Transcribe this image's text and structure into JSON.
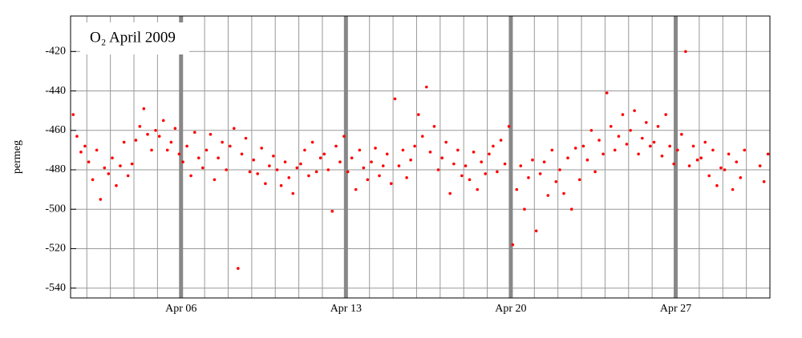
{
  "chart_data": {
    "type": "scatter",
    "title": "O₂ April 2009",
    "y_label": "permeg",
    "xlim": [
      1.31,
      31.0
    ],
    "xticks": [
      {
        "value": 6,
        "label": "Apr 06"
      },
      {
        "value": 13,
        "label": "Apr 13"
      },
      {
        "value": 20,
        "label": "Apr 20"
      },
      {
        "value": 27,
        "label": "Apr 27"
      }
    ],
    "xminorticks": [
      2,
      3,
      4,
      5,
      7,
      8,
      9,
      10,
      11,
      12,
      14,
      15,
      16,
      17,
      18,
      19,
      21,
      22,
      23,
      24,
      25,
      26,
      28,
      29,
      30
    ],
    "ylim": [
      -545,
      -402
    ],
    "yticks": [
      -540,
      -520,
      -500,
      -480,
      -460,
      -440,
      -420
    ],
    "grid": true,
    "series": [
      {
        "color": "#ff0000",
        "x": [
          1.42,
          1.58,
          1.75,
          1.92,
          2.08,
          2.25,
          2.42,
          2.58,
          2.75,
          2.92,
          3.08,
          3.25,
          3.42,
          3.58,
          3.75,
          3.92,
          4.08,
          4.25,
          4.42,
          4.58,
          4.75,
          4.92,
          5.08,
          5.25,
          5.42,
          5.58,
          5.75,
          5.92,
          6.08,
          6.25,
          6.42,
          6.58,
          6.75,
          6.92,
          7.08,
          7.25,
          7.42,
          7.58,
          7.75,
          7.92,
          8.08,
          8.25,
          8.42,
          8.58,
          8.75,
          8.92,
          9.08,
          9.25,
          9.42,
          9.58,
          9.75,
          9.92,
          10.08,
          10.25,
          10.42,
          10.58,
          10.75,
          10.92,
          11.08,
          11.25,
          11.42,
          11.58,
          11.75,
          11.92,
          12.08,
          12.25,
          12.42,
          12.58,
          12.75,
          12.92,
          13.08,
          13.25,
          13.42,
          13.58,
          13.75,
          13.92,
          14.08,
          14.25,
          14.42,
          14.58,
          14.75,
          14.92,
          15.08,
          15.25,
          15.42,
          15.58,
          15.75,
          15.92,
          16.08,
          16.25,
          16.42,
          16.58,
          16.75,
          16.92,
          17.08,
          17.25,
          17.42,
          17.58,
          17.75,
          17.92,
          18.08,
          18.25,
          18.42,
          18.58,
          18.75,
          18.92,
          19.08,
          19.25,
          19.42,
          19.58,
          19.75,
          19.92,
          20.08,
          20.25,
          20.42,
          20.58,
          20.75,
          20.92,
          21.08,
          21.25,
          21.42,
          21.58,
          21.75,
          21.92,
          22.08,
          22.25,
          22.42,
          22.58,
          22.75,
          22.92,
          23.08,
          23.25,
          23.42,
          23.58,
          23.75,
          23.92,
          24.08,
          24.25,
          24.42,
          24.58,
          24.75,
          24.92,
          25.08,
          25.25,
          25.42,
          25.58,
          25.75,
          25.92,
          26.08,
          26.25,
          26.42,
          26.58,
          26.75,
          26.92,
          27.08,
          27.25,
          27.42,
          27.58,
          27.75,
          27.92,
          28.08,
          28.25,
          28.42,
          28.58,
          28.75,
          28.92,
          29.08,
          29.25,
          29.42,
          29.58,
          29.75,
          29.92,
          30.58,
          30.75,
          30.92
        ],
        "values": [
          -452,
          -463,
          -471,
          -468,
          -476,
          -485,
          -470,
          -495,
          -479,
          -482,
          -474,
          -488,
          -478,
          -466,
          -483,
          -477,
          -465,
          -458,
          -449,
          -462,
          -470,
          -460,
          -463,
          -455,
          -470,
          -466,
          -459,
          -472,
          -476,
          -468,
          -483,
          -461,
          -474,
          -479,
          -470,
          -462,
          -485,
          -474,
          -466,
          -480,
          -468,
          -459,
          -530,
          -472,
          -464,
          -481,
          -475,
          -482,
          -469,
          -487,
          -478,
          -473,
          -480,
          -488,
          -476,
          -484,
          -492,
          -479,
          -477,
          -470,
          -483,
          -466,
          -481,
          -474,
          -472,
          -480,
          -501,
          -468,
          -476,
          -463,
          -481,
          -474,
          -490,
          -470,
          -479,
          -485,
          -476,
          -469,
          -483,
          -478,
          -472,
          -487,
          -444,
          -478,
          -470,
          -484,
          -475,
          -468,
          -452,
          -463,
          -438,
          -471,
          -458,
          -480,
          -474,
          -466,
          -492,
          -477,
          -470,
          -483,
          -478,
          -485,
          -471,
          -490,
          -476,
          -482,
          -472,
          -468,
          -481,
          -465,
          -477,
          -458,
          -518,
          -490,
          -478,
          -500,
          -484,
          -475,
          -511,
          -482,
          -476,
          -493,
          -470,
          -486,
          -480,
          -492,
          -474,
          -500,
          -469,
          -485,
          -468,
          -475,
          -460,
          -481,
          -465,
          -472,
          -441,
          -458,
          -470,
          -463,
          -452,
          -467,
          -460,
          -450,
          -472,
          -464,
          -456,
          -468,
          -466,
          -458,
          -473,
          -452,
          -468,
          -477,
          -470,
          -462,
          -420,
          -478,
          -468,
          -475,
          -474,
          -466,
          -483,
          -470,
          -488,
          -479,
          -480,
          -472,
          -490,
          -476,
          -484,
          -470,
          -478,
          -486,
          -472
        ]
      }
    ]
  }
}
